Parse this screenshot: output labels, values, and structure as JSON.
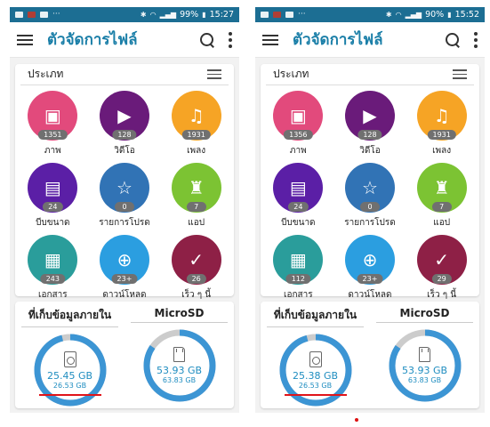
{
  "app": {
    "title": "ตัวจัดการไฟล์",
    "categories_label": "ประเภท",
    "internal_label": "ที่เก็บข้อมูลภายใน",
    "microsd_label": "MicroSD"
  },
  "colors": {
    "status_bar": "#1c6e93",
    "title_text": "#1b7fa8",
    "images": "#e24a7c",
    "videos": "#6a1b7a",
    "audio": "#f6a425",
    "compressed": "#5b1fa6",
    "favorites": "#3173b5",
    "apps": "#7cc333",
    "documents": "#2a9d9b",
    "downloads": "#2b9ee0",
    "recent": "#8e2046",
    "ring": "#3c95d4",
    "ring_free": "#cccccc"
  },
  "phones": [
    {
      "status": {
        "battery": "99%",
        "time": "15:27"
      },
      "categories": [
        {
          "label": "ภาพ",
          "count": "1351",
          "icon": "image-icon"
        },
        {
          "label": "วิดีโอ",
          "count": "128",
          "icon": "video-icon"
        },
        {
          "label": "เพลง",
          "count": "1931",
          "icon": "music-icon"
        },
        {
          "label": "บีบขนาด",
          "count": "24",
          "icon": "zip-icon"
        },
        {
          "label": "รายการโปรด",
          "count": "0",
          "icon": "star-icon"
        },
        {
          "label": "แอป",
          "count": "7",
          "icon": "android-icon"
        },
        {
          "label": "เอกสาร",
          "count": "243",
          "icon": "document-icon"
        },
        {
          "label": "ดาวน์โหลด",
          "count": "23+",
          "icon": "download-icon"
        },
        {
          "label": "เร็ว ๆ นี้",
          "count": "26",
          "icon": "check-icon"
        }
      ],
      "internal": {
        "used": "25.45 GB",
        "total": "26.53 GB",
        "fill": 0.96
      },
      "microsd": {
        "used": "53.93 GB",
        "total": "63.83 GB",
        "fill": 0.845
      }
    },
    {
      "status": {
        "battery": "90%",
        "time": "15:52"
      },
      "categories": [
        {
          "label": "ภาพ",
          "count": "1356",
          "icon": "image-icon"
        },
        {
          "label": "วิดีโอ",
          "count": "128",
          "icon": "video-icon"
        },
        {
          "label": "เพลง",
          "count": "1931",
          "icon": "music-icon"
        },
        {
          "label": "บีบขนาด",
          "count": "24",
          "icon": "zip-icon"
        },
        {
          "label": "รายการโปรด",
          "count": "0",
          "icon": "star-icon"
        },
        {
          "label": "แอป",
          "count": "7",
          "icon": "android-icon"
        },
        {
          "label": "เอกสาร",
          "count": "112",
          "icon": "document-icon"
        },
        {
          "label": "ดาวน์โหลด",
          "count": "23+",
          "icon": "download-icon"
        },
        {
          "label": "เร็ว ๆ นี้",
          "count": "29",
          "icon": "check-icon"
        }
      ],
      "internal": {
        "used": "25.38 GB",
        "total": "26.53 GB",
        "fill": 0.957
      },
      "microsd": {
        "used": "53.93 GB",
        "total": "63.83 GB",
        "fill": 0.845
      }
    }
  ]
}
